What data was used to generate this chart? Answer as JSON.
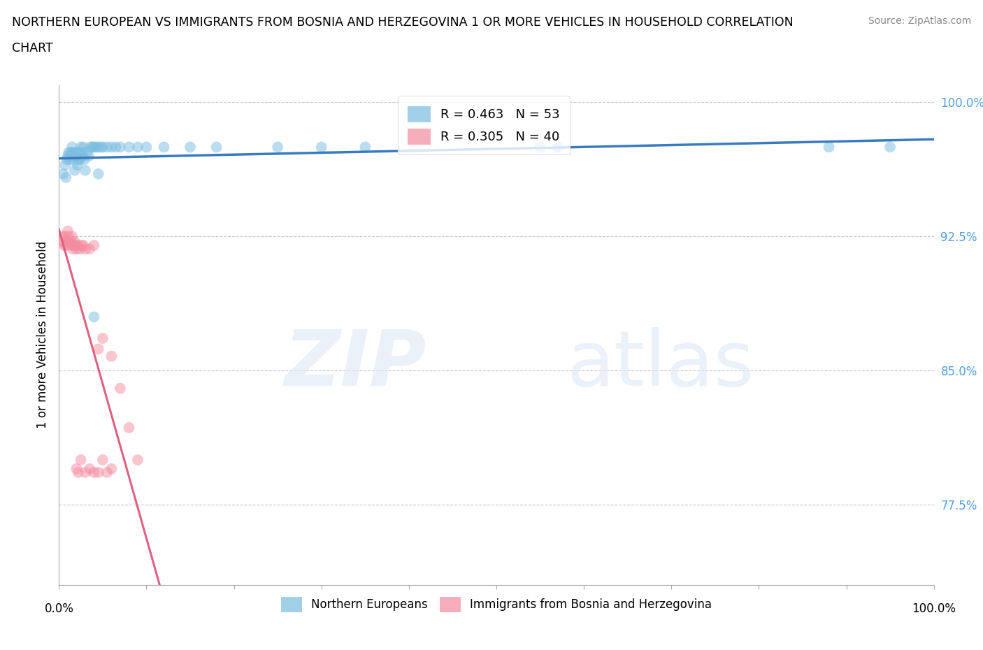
{
  "title_line1": "NORTHERN EUROPEAN VS IMMIGRANTS FROM BOSNIA AND HERZEGOVINA 1 OR MORE VEHICLES IN HOUSEHOLD CORRELATION",
  "title_line2": "CHART",
  "source": "Source: ZipAtlas.com",
  "ylabel": "1 or more Vehicles in Household",
  "ytick_labels": [
    "100.0%",
    "92.5%",
    "85.0%",
    "77.5%"
  ],
  "ytick_values": [
    1.0,
    0.925,
    0.85,
    0.775
  ],
  "legend_blue_label": "R = 0.463   N = 53",
  "legend_pink_label": "R = 0.305   N = 40",
  "blue_color": "#7bbde0",
  "pink_color": "#f48ca0",
  "blue_line_color": "#3a7bbf",
  "pink_line_color": "#e06080",
  "blue_x": [
    0.005,
    0.007,
    0.008,
    0.009,
    0.01,
    0.011,
    0.012,
    0.013,
    0.014,
    0.015,
    0.016,
    0.017,
    0.018,
    0.019,
    0.02,
    0.021,
    0.022,
    0.023,
    0.024,
    0.025,
    0.026,
    0.027,
    0.028,
    0.029,
    0.03,
    0.032,
    0.034,
    0.036,
    0.038,
    0.04,
    0.042,
    0.045,
    0.048,
    0.05,
    0.055,
    0.06,
    0.065,
    0.07,
    0.08,
    0.09,
    0.1,
    0.12,
    0.15,
    0.18,
    0.25,
    0.3,
    0.35,
    0.55,
    0.57,
    0.88,
    0.95,
    0.04,
    0.045
  ],
  "blue_y": [
    0.96,
    0.965,
    0.958,
    0.968,
    0.97,
    0.972,
    0.968,
    0.972,
    0.97,
    0.975,
    0.972,
    0.968,
    0.962,
    0.972,
    0.97,
    0.965,
    0.968,
    0.972,
    0.968,
    0.975,
    0.972,
    0.97,
    0.975,
    0.968,
    0.962,
    0.972,
    0.97,
    0.975,
    0.975,
    0.975,
    0.975,
    0.975,
    0.975,
    0.975,
    0.975,
    0.975,
    0.975,
    0.975,
    0.975,
    0.975,
    0.975,
    0.975,
    0.975,
    0.975,
    0.975,
    0.975,
    0.975,
    0.975,
    0.975,
    0.975,
    0.975,
    0.88,
    0.96
  ],
  "pink_x": [
    0.004,
    0.005,
    0.006,
    0.007,
    0.008,
    0.009,
    0.01,
    0.011,
    0.012,
    0.013,
    0.014,
    0.015,
    0.016,
    0.017,
    0.018,
    0.019,
    0.02,
    0.022,
    0.024,
    0.026,
    0.028,
    0.03,
    0.035,
    0.04,
    0.045,
    0.05,
    0.06,
    0.07,
    0.08,
    0.09,
    0.02,
    0.022,
    0.025,
    0.03,
    0.035,
    0.04,
    0.045,
    0.05,
    0.055,
    0.06
  ],
  "pink_y": [
    0.925,
    0.922,
    0.92,
    0.925,
    0.92,
    0.922,
    0.928,
    0.925,
    0.922,
    0.92,
    0.922,
    0.925,
    0.918,
    0.92,
    0.922,
    0.92,
    0.918,
    0.92,
    0.918,
    0.92,
    0.92,
    0.918,
    0.918,
    0.92,
    0.862,
    0.868,
    0.858,
    0.84,
    0.818,
    0.8,
    0.795,
    0.793,
    0.8,
    0.793,
    0.795,
    0.793,
    0.793,
    0.8,
    0.793,
    0.795
  ],
  "watermark_zip": "ZIP",
  "watermark_atlas": "atlas",
  "background_color": "#ffffff",
  "grid_color": "#c8c8c8",
  "xlim": [
    0.0,
    1.0
  ],
  "ylim": [
    0.73,
    1.01
  ],
  "bottom_legend_labels": [
    "Northern Europeans",
    "Immigrants from Bosnia and Herzegovina"
  ]
}
